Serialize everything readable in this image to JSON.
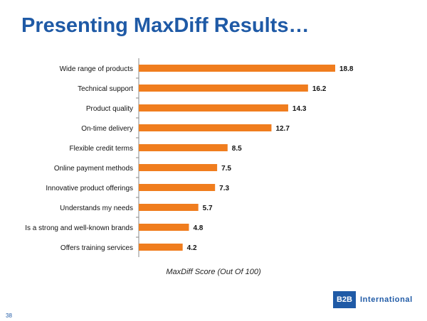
{
  "slide": {
    "title": "Presenting MaxDiff Results…",
    "page_number": "38",
    "logo_mark": "B2B",
    "logo_text": "International"
  },
  "chart_data": {
    "type": "bar",
    "orientation": "horizontal",
    "categories": [
      "Wide range of products",
      "Technical support",
      "Product quality",
      "On-time delivery",
      "Flexible credit terms",
      "Online payment methods",
      "Innovative product offerings",
      "Understands my needs",
      "Is a strong and well-known brands",
      "Offers training services"
    ],
    "values": [
      18.8,
      16.2,
      14.3,
      12.7,
      8.5,
      7.5,
      7.3,
      5.7,
      4.8,
      4.2
    ],
    "value_labels": [
      "18.8",
      "16.2",
      "14.3",
      "12.7",
      "8.5",
      "7.5",
      "7.3",
      "5.7",
      "4.8",
      "4.2"
    ],
    "xlabel": "MaxDiff Score (Out Of 100)",
    "bar_color": "#f07d1e",
    "grid": false,
    "legend": "none"
  }
}
